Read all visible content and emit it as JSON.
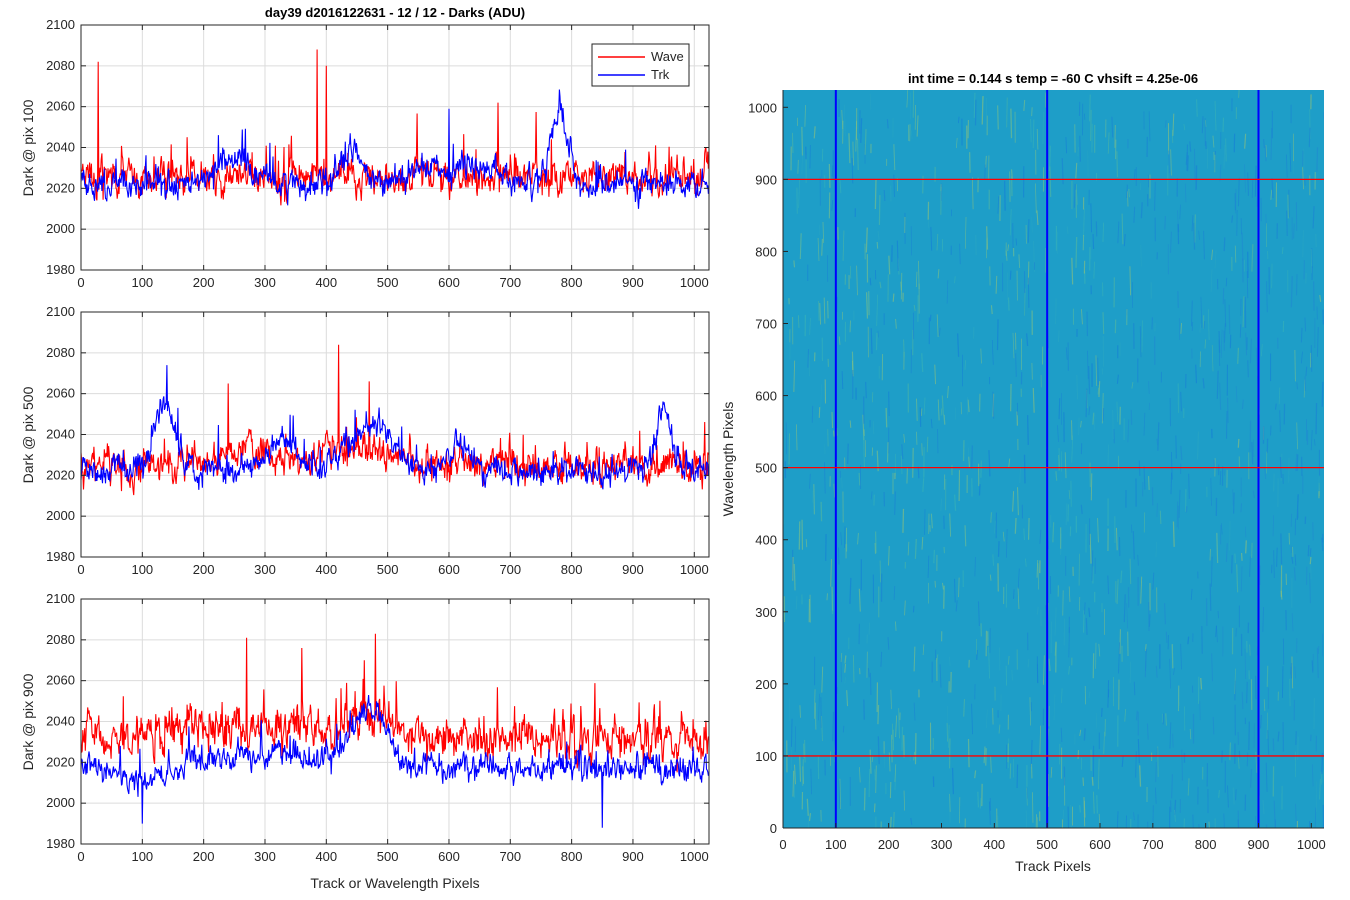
{
  "figure": {
    "title": "day39 d2016122631 - 12 / 12 - Darks (ADU)",
    "colors": {
      "wave": "#ff0000",
      "trk": "#0000ff",
      "grid": "#dcdcdc"
    }
  },
  "chart_data": [
    {
      "type": "line",
      "title": "day39 d2016122631 - 12 / 12 - Darks (ADU)",
      "ylabel": "Dark @ pix 100",
      "xlabel": "",
      "xlim": [
        0,
        1024
      ],
      "ylim": [
        1980,
        2100
      ],
      "xticks": [
        0,
        100,
        200,
        300,
        400,
        500,
        600,
        700,
        800,
        900,
        1000
      ],
      "yticks": [
        1980,
        2000,
        2020,
        2040,
        2060,
        2080,
        2100
      ],
      "grid": true,
      "legend": {
        "entries": [
          "Wave",
          "Trk"
        ],
        "placement": "top-right"
      },
      "series": [
        {
          "name": "Wave",
          "color": "#ff0000",
          "baseline": 2026,
          "noise": 9,
          "spikes": [
            [
              28,
              2082
            ],
            [
              385,
              2088
            ],
            [
              400,
              2080
            ],
            [
              680,
              2062
            ]
          ],
          "bumps": []
        },
        {
          "name": "Trk",
          "color": "#0000ff",
          "baseline": 2022,
          "noise": 7,
          "spikes": [
            [
              600,
              2059
            ]
          ],
          "bumps": [
            [
              250,
              40,
              12
            ],
            [
              440,
              25,
              15
            ],
            [
              560,
              30,
              10
            ],
            [
              780,
              18,
              36
            ],
            [
              650,
              60,
              8
            ]
          ]
        }
      ]
    },
    {
      "type": "line",
      "ylabel": "Dark @ pix 500",
      "xlabel": "",
      "xlim": [
        0,
        1024
      ],
      "ylim": [
        1980,
        2100
      ],
      "xticks": [
        0,
        100,
        200,
        300,
        400,
        500,
        600,
        700,
        800,
        900,
        1000
      ],
      "yticks": [
        1980,
        2000,
        2020,
        2040,
        2060,
        2080,
        2100
      ],
      "grid": true,
      "series": [
        {
          "name": "Wave",
          "color": "#ff0000",
          "baseline": 2025,
          "noise": 9,
          "spikes": [
            [
              420,
              2084
            ],
            [
              240,
              2065
            ],
            [
              470,
              2066
            ]
          ],
          "bumps": [
            [
              270,
              60,
              8
            ],
            [
              440,
              60,
              10
            ]
          ]
        },
        {
          "name": "Trk",
          "color": "#0000ff",
          "baseline": 2022,
          "noise": 7,
          "spikes": [
            [
              140,
              2074
            ]
          ],
          "bumps": [
            [
              135,
              25,
              32
            ],
            [
              330,
              40,
              15
            ],
            [
              470,
              50,
              22
            ],
            [
              620,
              25,
              12
            ],
            [
              950,
              20,
              30
            ]
          ]
        }
      ]
    },
    {
      "type": "line",
      "ylabel": "Dark @ pix 900",
      "xlabel": "Track or Wavelength Pixels",
      "xlim": [
        0,
        1024
      ],
      "ylim": [
        1980,
        2100
      ],
      "xticks": [
        0,
        100,
        200,
        300,
        400,
        500,
        600,
        700,
        800,
        900,
        1000
      ],
      "yticks": [
        1980,
        2000,
        2020,
        2040,
        2060,
        2080,
        2100
      ],
      "grid": true,
      "series": [
        {
          "name": "Wave",
          "color": "#ff0000",
          "baseline": 2032,
          "noise": 11,
          "spikes": [
            [
              480,
              2083
            ],
            [
              270,
              2081
            ],
            [
              360,
              2076
            ]
          ],
          "bumps": [
            [
              300,
              180,
              6
            ],
            [
              470,
              40,
              10
            ]
          ]
        },
        {
          "name": "Trk",
          "color": "#0000ff",
          "baseline": 2018,
          "noise": 7,
          "spikes": [
            [
              850,
              1988
            ],
            [
              100,
              1990
            ]
          ],
          "bumps": [
            [
              100,
              50,
              -8
            ],
            [
              470,
              40,
              28
            ],
            [
              300,
              100,
              6
            ]
          ]
        }
      ]
    },
    {
      "type": "heatmap",
      "title": "int time = 0.144 s   temp = -60 C   vhsift = 4.25e-06",
      "xlabel": "Track Pixels",
      "ylabel": "Wavelength Pixels",
      "xlim": [
        0,
        1024
      ],
      "ylim": [
        0,
        1024
      ],
      "xticks": [
        0,
        100,
        200,
        300,
        400,
        500,
        600,
        700,
        800,
        900,
        1000
      ],
      "yticks": [
        0,
        100,
        200,
        300,
        400,
        500,
        600,
        700,
        800,
        900,
        1000
      ],
      "colormap": "parula",
      "base_color": "#1e9ec8",
      "vertical_lines": {
        "x": [
          100,
          500,
          900
        ],
        "color": "#0000ff"
      },
      "horizontal_lines": {
        "y": [
          100,
          500,
          900
        ],
        "color": "#ff0000"
      }
    }
  ]
}
